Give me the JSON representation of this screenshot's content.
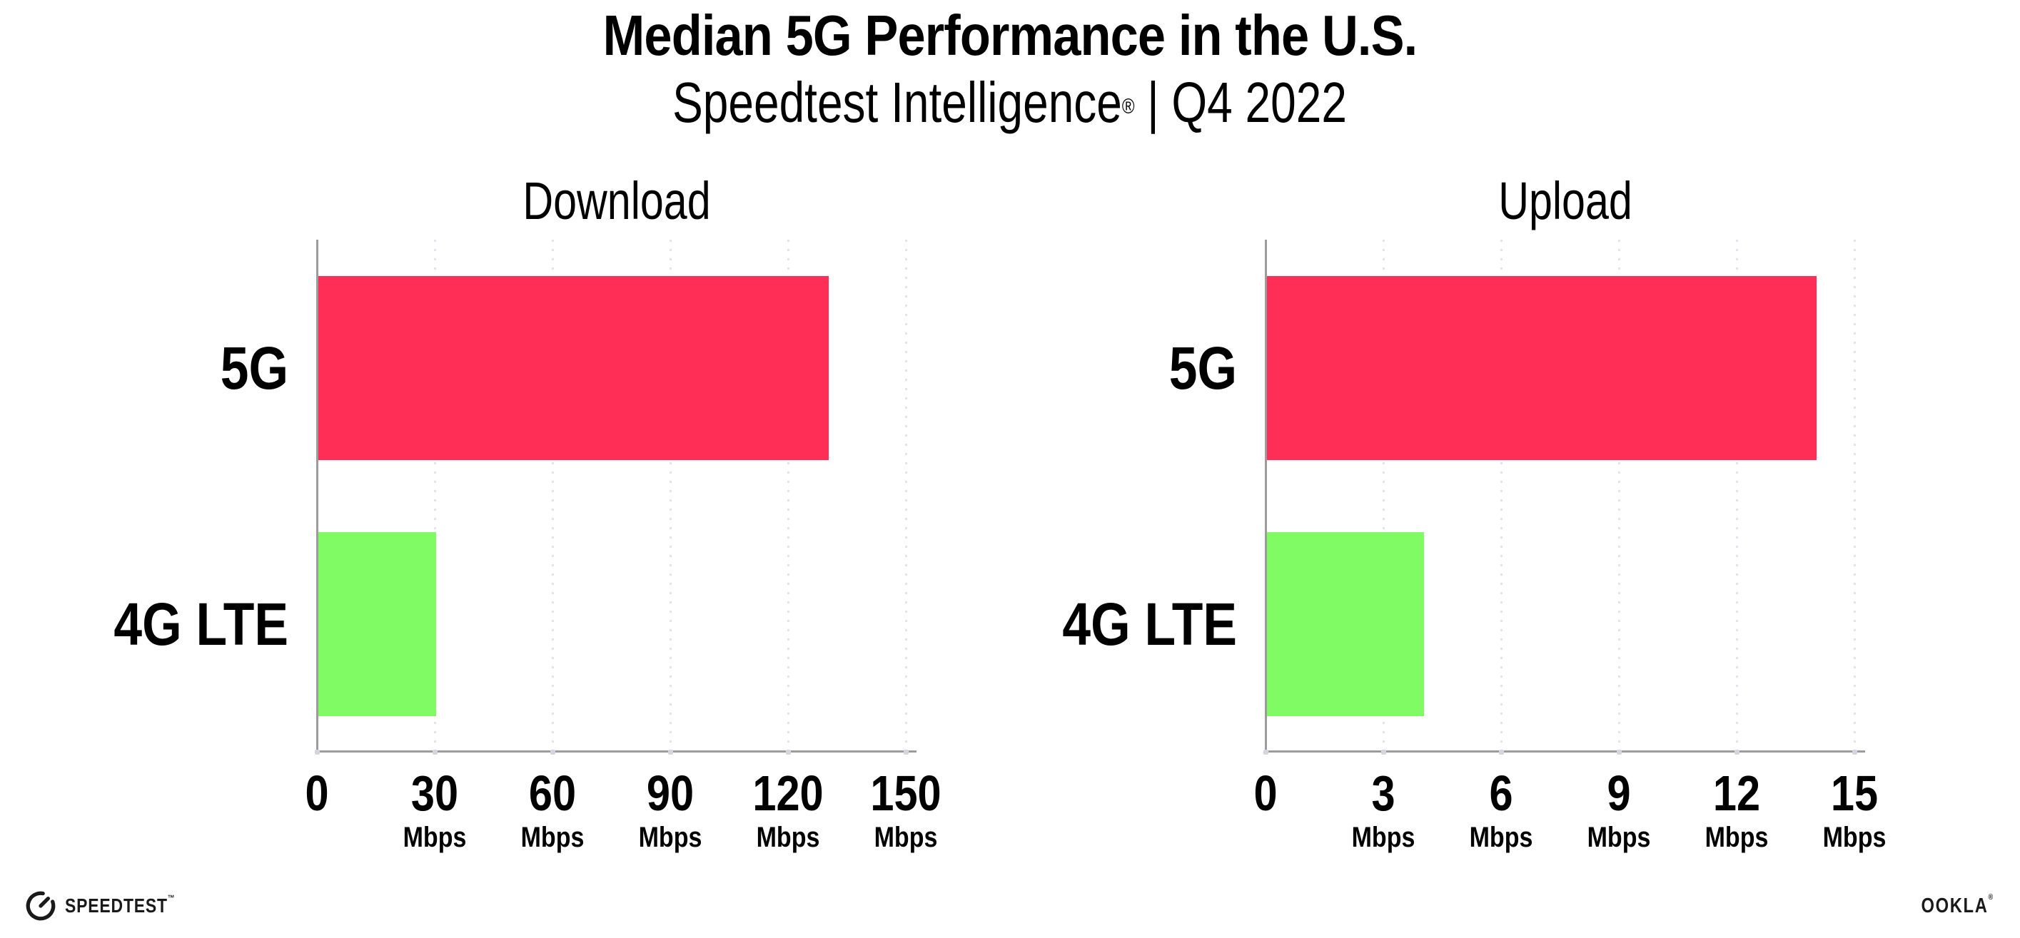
{
  "header": {
    "title": "Median 5G Performance in the U.S.",
    "subtitle_brand": "Speedtest Intelligence",
    "subtitle_reg": "®",
    "subtitle_separator": "|",
    "subtitle_period": "Q4 2022"
  },
  "footer": {
    "speedtest_label": "SPEEDTEST",
    "speedtest_tm": "™",
    "ookla_label": "OOKLA",
    "ookla_reg": "®"
  },
  "colors": {
    "bar_5g": "#FF2E56",
    "bar_4g": "#81FB64",
    "axis": "#9C9C9C",
    "gridline": "#E3E3ED",
    "axis_dot": "#D5D5DF",
    "text": "#000000"
  },
  "chart_data": [
    {
      "type": "bar",
      "orientation": "horizontal",
      "title": "Download",
      "categories": [
        "5G",
        "4G LTE"
      ],
      "values": [
        130,
        30
      ],
      "unit": "Mbps",
      "xlim": [
        0,
        150
      ],
      "tick_step": 30,
      "ticks": [
        0,
        30,
        60,
        90,
        120,
        150
      ],
      "grid": "dotted-vertical",
      "legend": "none",
      "bar_colors": [
        "#FF2E56",
        "#81FB64"
      ]
    },
    {
      "type": "bar",
      "orientation": "horizontal",
      "title": "Upload",
      "categories": [
        "5G",
        "4G LTE"
      ],
      "values": [
        14,
        4
      ],
      "unit": "Mbps",
      "xlim": [
        0,
        15
      ],
      "tick_step": 3,
      "ticks": [
        0,
        3,
        6,
        9,
        12,
        15
      ],
      "grid": "dotted-vertical",
      "legend": "none",
      "bar_colors": [
        "#FF2E56",
        "#81FB64"
      ]
    }
  ]
}
